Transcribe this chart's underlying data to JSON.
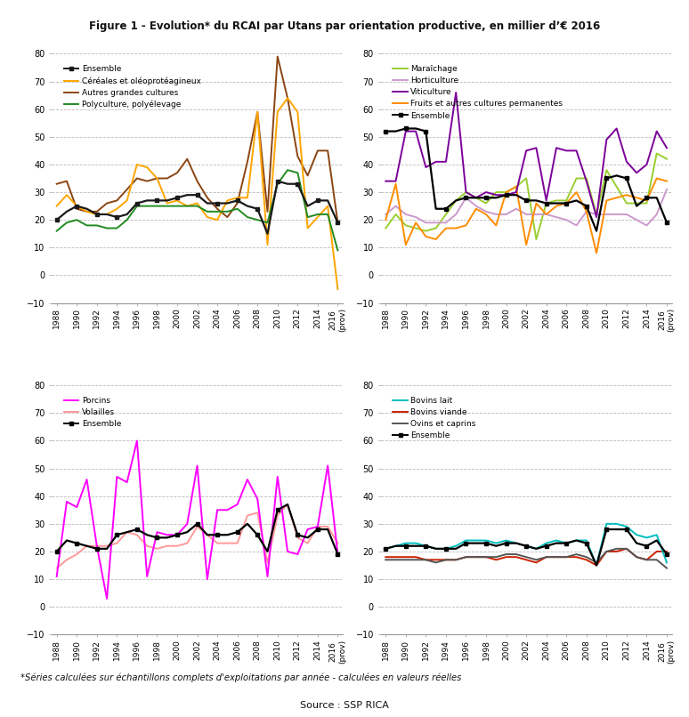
{
  "title": "Figure 1 - Evolution* du RCAI par Utans par orientation productive, en millier d’€ 2016",
  "n_years": 29,
  "years_labels": [
    "1988",
    "1990",
    "1992",
    "1994",
    "1996",
    "1998",
    "2000",
    "2002",
    "2004",
    "2006",
    "2008",
    "2010",
    "2012",
    "2014",
    "2016\n(prov)"
  ],
  "years_ticks": [
    0,
    2,
    4,
    6,
    8,
    10,
    12,
    14,
    16,
    18,
    20,
    22,
    24,
    26,
    28
  ],
  "subplot1": {
    "Ensemble": [
      20,
      23,
      25,
      24,
      22,
      22,
      21,
      22,
      26,
      27,
      27,
      27,
      28,
      29,
      29,
      26,
      26,
      26,
      27,
      25,
      24,
      15,
      34,
      33,
      33,
      25,
      27,
      27,
      19
    ],
    "Cereales": [
      25,
      29,
      25,
      23,
      22,
      22,
      24,
      27,
      40,
      39,
      35,
      26,
      27,
      25,
      26,
      21,
      20,
      27,
      28,
      28,
      59,
      11,
      59,
      64,
      59,
      17,
      21,
      25,
      -5
    ],
    "Autres": [
      33,
      34,
      24,
      23,
      23,
      26,
      27,
      31,
      35,
      34,
      35,
      35,
      37,
      42,
      34,
      28,
      24,
      21,
      26,
      41,
      59,
      23,
      79,
      64,
      43,
      36,
      45,
      45,
      19
    ],
    "Polyculture": [
      16,
      19,
      20,
      18,
      18,
      17,
      17,
      20,
      25,
      25,
      25,
      25,
      25,
      25,
      25,
      23,
      23,
      23,
      24,
      21,
      20,
      19,
      33,
      38,
      37,
      21,
      22,
      22,
      9
    ]
  },
  "subplot2": {
    "Maraichage": [
      17,
      22,
      18,
      17,
      16,
      17,
      22,
      27,
      30,
      28,
      26,
      30,
      30,
      32,
      35,
      13,
      26,
      27,
      27,
      35,
      35,
      22,
      38,
      32,
      26,
      26,
      26,
      44,
      42
    ],
    "Horticulture": [
      22,
      25,
      22,
      21,
      19,
      19,
      19,
      22,
      28,
      25,
      23,
      22,
      22,
      24,
      22,
      22,
      22,
      21,
      20,
      18,
      23,
      22,
      22,
      22,
      22,
      20,
      18,
      22,
      31
    ],
    "Viticulture": [
      34,
      34,
      52,
      52,
      39,
      41,
      41,
      66,
      30,
      28,
      30,
      29,
      29,
      30,
      45,
      46,
      27,
      46,
      45,
      45,
      34,
      21,
      49,
      53,
      41,
      37,
      40,
      52,
      46
    ],
    "Fruits": [
      20,
      33,
      11,
      19,
      14,
      13,
      17,
      17,
      18,
      24,
      22,
      18,
      30,
      32,
      11,
      26,
      22,
      25,
      26,
      30,
      23,
      8,
      27,
      28,
      29,
      28,
      27,
      35,
      34
    ],
    "Ensemble": [
      52,
      52,
      53,
      53,
      52,
      24,
      24,
      27,
      28,
      28,
      28,
      28,
      29,
      29,
      27,
      27,
      26,
      26,
      26,
      27,
      25,
      16,
      35,
      36,
      35,
      25,
      28,
      28,
      19
    ]
  },
  "subplot3": {
    "Porcins": [
      11,
      38,
      36,
      46,
      22,
      3,
      47,
      45,
      60,
      11,
      27,
      26,
      26,
      30,
      51,
      10,
      35,
      35,
      37,
      46,
      39,
      11,
      47,
      20,
      19,
      28,
      29,
      51,
      19
    ],
    "Volailles": [
      14,
      17,
      19,
      22,
      22,
      22,
      23,
      27,
      26,
      22,
      21,
      22,
      22,
      23,
      29,
      26,
      23,
      23,
      23,
      33,
      34,
      16,
      33,
      37,
      25,
      23,
      29,
      29,
      23
    ],
    "Ensemble": [
      20,
      24,
      23,
      22,
      21,
      21,
      26,
      27,
      28,
      26,
      25,
      25,
      26,
      27,
      30,
      26,
      26,
      26,
      27,
      30,
      26,
      20,
      35,
      37,
      26,
      25,
      28,
      28,
      19
    ]
  },
  "subplot4": {
    "Bovins_lait": [
      21,
      22,
      23,
      23,
      22,
      21,
      21,
      22,
      24,
      24,
      24,
      23,
      24,
      23,
      22,
      21,
      23,
      24,
      23,
      24,
      24,
      15,
      30,
      30,
      29,
      26,
      25,
      26,
      16
    ],
    "Bovins_viande": [
      18,
      18,
      18,
      18,
      17,
      17,
      17,
      17,
      18,
      18,
      18,
      17,
      18,
      18,
      17,
      16,
      18,
      18,
      18,
      18,
      17,
      15,
      20,
      20,
      21,
      18,
      17,
      20,
      20
    ],
    "Ovins": [
      17,
      17,
      17,
      17,
      17,
      16,
      17,
      17,
      18,
      18,
      18,
      18,
      19,
      19,
      18,
      17,
      18,
      18,
      18,
      19,
      18,
      16,
      20,
      21,
      21,
      18,
      17,
      17,
      14
    ],
    "Ensemble_b": [
      21,
      22,
      22,
      22,
      22,
      21,
      21,
      21,
      23,
      23,
      23,
      22,
      23,
      23,
      22,
      21,
      22,
      23,
      23,
      24,
      23,
      15,
      28,
      28,
      28,
      23,
      22,
      24,
      19
    ]
  },
  "colors": {
    "s1_ensemble": "#1a1a1a",
    "s1_cereales": "#FFA500",
    "s1_autres": "#8B4513",
    "s1_polyculture": "#228B22",
    "s2_maraichage": "#9ACD32",
    "s2_horticulture": "#CC99CC",
    "s2_viticulture": "#7B0099",
    "s2_fruits": "#FF8C00",
    "s2_ensemble": "#000000",
    "s3_porcins": "#FF00FF",
    "s3_volailles": "#FF9999",
    "s3_ensemble": "#000000",
    "s4_bovins_lait": "#00BFBF",
    "s4_bovins_viande": "#CC2200",
    "s4_ovins": "#555555",
    "s4_ensemble": "#000000"
  },
  "ylim": [
    -10,
    80
  ],
  "yticks": [
    -10,
    0,
    10,
    20,
    30,
    40,
    50,
    60,
    70,
    80
  ],
  "footnote1": "*Séries calculées sur échantillons complets d'exploitations par année - calculées en valeurs réelles",
  "footnote2": "Source : SSP RICA"
}
